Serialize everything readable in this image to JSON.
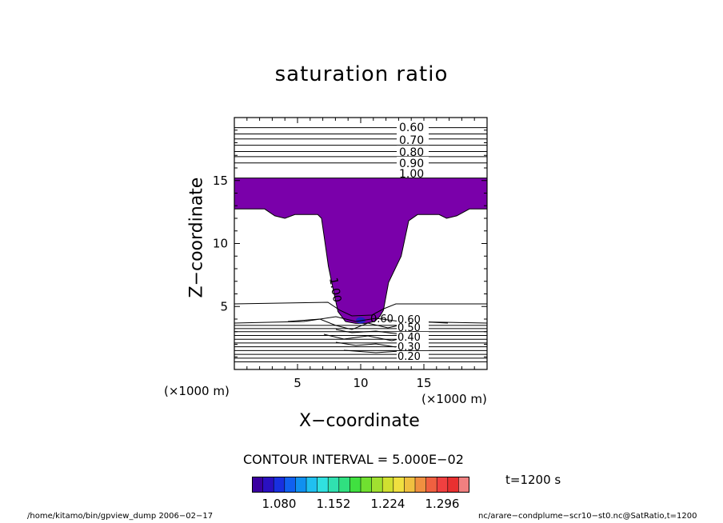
{
  "chart_data": {
    "type": "contour",
    "title": "saturation ratio",
    "xlabel": "X−coordinate",
    "ylabel": "Z−coordinate",
    "x_unit": "(×1000 m)",
    "y_unit": "(×1000 m)",
    "xlim": [
      0,
      20
    ],
    "ylim": [
      0,
      20
    ],
    "x_ticks": [
      5,
      10,
      15
    ],
    "y_ticks": [
      5,
      10,
      15
    ],
    "contour_interval_text": "CONTOUR INTERVAL = 5.000E−02",
    "upper_contour_labels": [
      "0.60",
      "0.70",
      "0.80",
      "0.90",
      "1.00"
    ],
    "lower_contour_labels": [
      "0.20",
      "0.30",
      "0.40",
      "0.50",
      "0.60"
    ],
    "middle_contour_labels": [
      "1.00",
      "0.60"
    ],
    "shading_threshold": 1.0,
    "shade_color": "#7a00aa",
    "colorbar": {
      "min": 1.044,
      "max": 1.332,
      "tick_labels": [
        "1.080",
        "1.152",
        "1.224",
        "1.296"
      ],
      "tick_values": [
        1.08,
        1.152,
        1.224,
        1.296
      ],
      "colors": [
        "#3a00a0",
        "#2a10c0",
        "#1830e0",
        "#1060f0",
        "#1090f0",
        "#20c0f0",
        "#30e0e0",
        "#30e0b0",
        "#30e080",
        "#40e040",
        "#70e030",
        "#a0e030",
        "#d0e030",
        "#f0e040",
        "#f0c040",
        "#f09040",
        "#f06040",
        "#f04040",
        "#e83030",
        "#f08080"
      ]
    },
    "time_label": "t=1200 s",
    "footer_left": "/home/kitamo/bin/gpview_dump  2006−02−17",
    "footer_right": "nc/arare−condplume−scr10−st0.nc@SatRatio,t=1200"
  }
}
